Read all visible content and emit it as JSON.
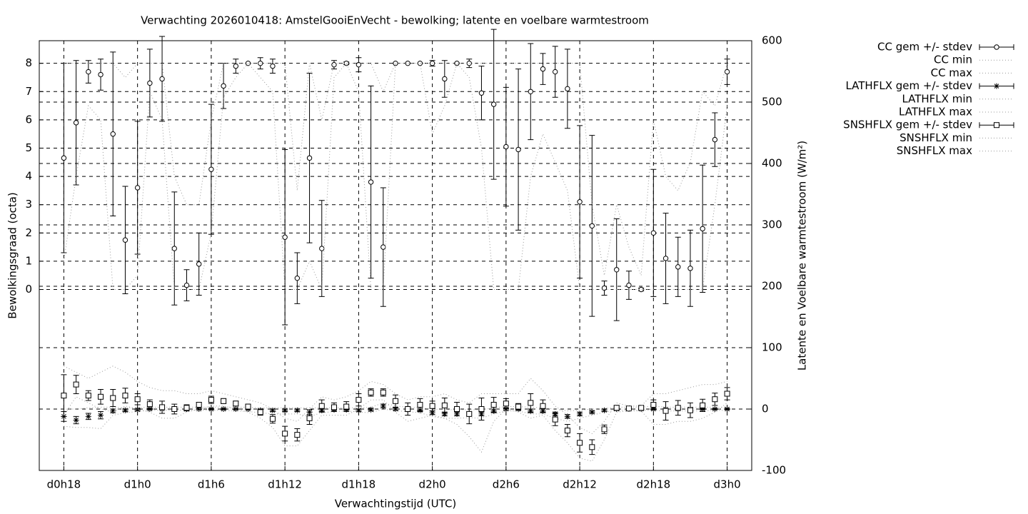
{
  "chart_data": {
    "type": "errorbar",
    "title": "Verwachting 2026010418: AmstelGooiEnVecht - bewolking; latente en voelbare warmtestroom",
    "xlabel": "Verwachtingstijd (UTC)",
    "ylabel": "Bewolkingsgraad (octa)",
    "y2label": "Latente en Voelbare warmtestroom (W/m²)",
    "x": [
      0,
      1,
      2,
      3,
      4,
      5,
      6,
      7,
      8,
      9,
      10,
      11,
      12,
      13,
      14,
      15,
      16,
      17,
      18,
      19,
      20,
      21,
      22,
      23,
      24,
      25,
      26,
      27,
      28,
      29,
      30,
      31,
      32,
      33,
      34,
      35,
      36,
      37,
      38,
      39,
      40,
      41,
      42,
      43,
      44,
      45,
      46,
      47,
      48,
      49,
      50,
      51,
      52,
      53,
      54
    ],
    "xlim": [
      -2,
      56
    ],
    "xticks": [
      {
        "value": 0,
        "label": "d0h18"
      },
      {
        "value": 6,
        "label": "d1h0"
      },
      {
        "value": 12,
        "label": "d1h6"
      },
      {
        "value": 18,
        "label": "d1h12"
      },
      {
        "value": 24,
        "label": "d1h18"
      },
      {
        "value": 30,
        "label": "d2h0"
      },
      {
        "value": 36,
        "label": "d2h6"
      },
      {
        "value": 42,
        "label": "d2h12"
      },
      {
        "value": 48,
        "label": "d2h18"
      },
      {
        "value": 54,
        "label": "d3h0"
      }
    ],
    "ylim": [
      -6.4,
      8.8
    ],
    "yticks": [
      0,
      1,
      2,
      3,
      4,
      5,
      6,
      7,
      8
    ],
    "y2lim": [
      -100,
      600
    ],
    "y2ticks": [
      -100,
      0,
      100,
      200,
      300,
      400,
      500,
      600
    ],
    "grid": true,
    "legend": "outside-top-right",
    "series": [
      {
        "name": "CC gem +/- stdev",
        "axis": "y",
        "marker": "circle",
        "color": "#000000",
        "values": [
          4.65,
          5.9,
          7.7,
          7.6,
          5.5,
          1.75,
          3.6,
          7.3,
          7.45,
          1.45,
          0.15,
          0.9,
          4.25,
          7.2,
          7.9,
          8,
          8,
          7.9,
          1.85,
          0.4,
          4.65,
          1.45,
          7.95,
          8,
          7.95,
          3.8,
          1.5,
          8,
          8,
          8,
          8,
          7.45,
          8,
          8,
          6.95,
          6.55,
          5.05,
          4.95,
          7,
          7.8,
          7.7,
          7.1,
          3.1,
          2.25,
          0.05,
          0.7,
          0.15,
          0,
          2,
          1.1,
          0.8,
          0.75,
          2.15,
          5.3,
          7.7
        ],
        "errors": [
          3.35,
          2.2,
          0.4,
          0.55,
          2.9,
          1.9,
          2.35,
          1.2,
          1.5,
          2,
          0.55,
          1.1,
          2.3,
          0.8,
          0.25,
          0,
          0.2,
          0.25,
          3.1,
          0.9,
          3,
          1.7,
          0.15,
          0.05,
          0.25,
          3.4,
          2.1,
          0,
          0,
          0,
          0.1,
          0.65,
          0,
          0.15,
          0.95,
          2.65,
          2.1,
          2.85,
          1.7,
          0.55,
          0.9,
          1.4,
          2.7,
          3.2,
          0.25,
          1.8,
          0.5,
          0.05,
          2.25,
          1.6,
          1.05,
          1.35,
          2.25,
          0.95,
          0.45
        ]
      },
      {
        "name": "CC min",
        "axis": "y",
        "color": "#999999",
        "values": [
          1,
          4,
          6.5,
          6,
          0,
          0,
          0.5,
          7,
          6,
          0,
          0,
          0,
          2,
          6.8,
          7.5,
          8,
          7.5,
          7,
          0,
          0,
          1,
          0,
          7.5,
          8,
          7,
          0,
          0,
          8,
          8,
          8,
          5.5,
          6.5,
          8,
          7.5,
          5,
          0,
          0,
          0,
          4,
          5.5,
          4.5,
          3.5,
          0,
          0,
          0,
          0,
          0,
          0,
          0,
          0,
          0,
          0,
          0,
          3,
          6.5
        ]
      },
      {
        "name": "CC max",
        "axis": "y",
        "color": "#999999",
        "values": [
          8,
          8,
          8,
          8,
          8,
          7.5,
          8,
          8,
          8,
          4,
          3,
          3,
          6,
          8,
          8,
          8,
          8,
          8,
          8,
          3.5,
          8,
          6,
          8,
          8,
          8,
          8,
          7,
          8,
          8,
          8,
          8,
          8,
          8,
          8,
          8,
          8,
          8,
          8,
          8,
          8,
          8,
          8,
          8,
          3,
          0.5,
          3,
          1.5,
          0.5,
          6,
          4,
          3.5,
          4.5,
          7,
          6.5,
          8
        ]
      },
      {
        "name": "LATHFLX gem +/- stdev",
        "axis": "y2",
        "marker": "star",
        "color": "#000000",
        "values": [
          -12,
          -18,
          -12,
          -10,
          -3,
          -2,
          -1,
          0,
          0,
          0,
          0,
          0,
          0,
          0,
          0,
          0,
          -2,
          -2,
          -2,
          -2,
          -5,
          -2,
          -1,
          -1,
          -2,
          -1,
          5,
          0,
          -1,
          -2,
          -6,
          -8,
          -8,
          -8,
          -8,
          -3,
          0,
          0,
          -3,
          -3,
          -8,
          -12,
          -8,
          -5,
          -2,
          0,
          0,
          0,
          0,
          0,
          0,
          0,
          0,
          0,
          0
        ],
        "errors": [
          8,
          6,
          5,
          6,
          3,
          2,
          2,
          1,
          1,
          1,
          1,
          1,
          1,
          1,
          1,
          1,
          2,
          2,
          2,
          2,
          4,
          2,
          1,
          1,
          2,
          2,
          3,
          2,
          2,
          2,
          3,
          3,
          3,
          3,
          3,
          3,
          2,
          2,
          3,
          3,
          3,
          3,
          3,
          2,
          2,
          1,
          1,
          1,
          1,
          1,
          1,
          1,
          1,
          1,
          1
        ]
      },
      {
        "name": "LATHFLX min",
        "axis": "y2",
        "color": "#999999",
        "values": [
          -28,
          -30,
          -30,
          -32,
          -10,
          -6,
          -4,
          -2,
          -2,
          -2,
          -2,
          -2,
          -2,
          -2,
          -3,
          -4,
          -6,
          -8,
          -8,
          -8,
          -12,
          -6,
          -4,
          -3,
          -5,
          -6,
          0,
          -3,
          -4,
          -6,
          -12,
          -15,
          -15,
          -14,
          -15,
          -8,
          -3,
          -3,
          -8,
          -8,
          -15,
          -20,
          -15,
          -10,
          -5,
          -2,
          -2,
          -2,
          -2,
          -3,
          -3,
          -3,
          -3,
          -2,
          -2
        ]
      },
      {
        "name": "LATHFLX max",
        "axis": "y2",
        "color": "#999999",
        "values": [
          0,
          0,
          2,
          3,
          3,
          2,
          2,
          3,
          3,
          3,
          3,
          3,
          3,
          3,
          3,
          3,
          2,
          2,
          2,
          2,
          2,
          2,
          2,
          2,
          2,
          3,
          10,
          5,
          3,
          2,
          0,
          -1,
          -1,
          -1,
          -1,
          2,
          4,
          4,
          3,
          2,
          0,
          -3,
          -2,
          0,
          1,
          3,
          3,
          3,
          5,
          3,
          3,
          3,
          3,
          3,
          3
        ]
      },
      {
        "name": "SNSHFLX gem +/- stdev",
        "axis": "y2",
        "marker": "square",
        "color": "#000000",
        "values": [
          22,
          40,
          22,
          20,
          18,
          22,
          16,
          8,
          3,
          0,
          2,
          7,
          15,
          13,
          9,
          4,
          -5,
          -16,
          -40,
          -42,
          -15,
          5,
          3,
          4,
          15,
          27,
          27,
          13,
          0,
          7,
          5,
          6,
          0,
          -8,
          0,
          7,
          9,
          4,
          10,
          5,
          -17,
          -35,
          -55,
          -62,
          -33,
          2,
          1,
          2,
          7,
          -3,
          2,
          -2,
          6,
          16,
          25
        ],
        "errors": [
          34,
          15,
          8,
          12,
          14,
          12,
          9,
          7,
          10,
          8,
          5,
          4,
          6,
          4,
          4,
          4,
          5,
          7,
          12,
          10,
          10,
          10,
          7,
          8,
          10,
          6,
          6,
          10,
          10,
          10,
          8,
          12,
          11,
          16,
          18,
          12,
          8,
          5,
          15,
          10,
          10,
          10,
          15,
          12,
          7,
          4,
          3,
          3,
          8,
          15,
          12,
          12,
          10,
          10,
          10
        ]
      },
      {
        "name": "SNSHFLX min",
        "axis": "y2",
        "color": "#999999",
        "values": [
          -10,
          20,
          10,
          0,
          -5,
          5,
          0,
          -5,
          -15,
          -15,
          -5,
          0,
          5,
          5,
          0,
          -5,
          -15,
          -30,
          -60,
          -60,
          -35,
          -10,
          -10,
          -10,
          0,
          15,
          15,
          -5,
          -20,
          -15,
          -10,
          -15,
          -25,
          -45,
          -70,
          -20,
          0,
          -5,
          -15,
          -10,
          -35,
          -55,
          -80,
          -85,
          -50,
          -5,
          -3,
          -3,
          -25,
          -25,
          -20,
          -20,
          -15,
          -5,
          10
        ]
      },
      {
        "name": "SNSHFLX max",
        "axis": "y2",
        "color": "#999999",
        "values": [
          70,
          60,
          50,
          60,
          70,
          60,
          45,
          35,
          30,
          30,
          25,
          25,
          30,
          25,
          20,
          15,
          10,
          0,
          -15,
          -20,
          0,
          20,
          15,
          20,
          30,
          45,
          40,
          25,
          15,
          20,
          20,
          25,
          15,
          10,
          25,
          25,
          25,
          25,
          50,
          30,
          5,
          -10,
          -30,
          -40,
          -20,
          10,
          5,
          5,
          25,
          25,
          30,
          35,
          40,
          40,
          45
        ]
      }
    ]
  }
}
